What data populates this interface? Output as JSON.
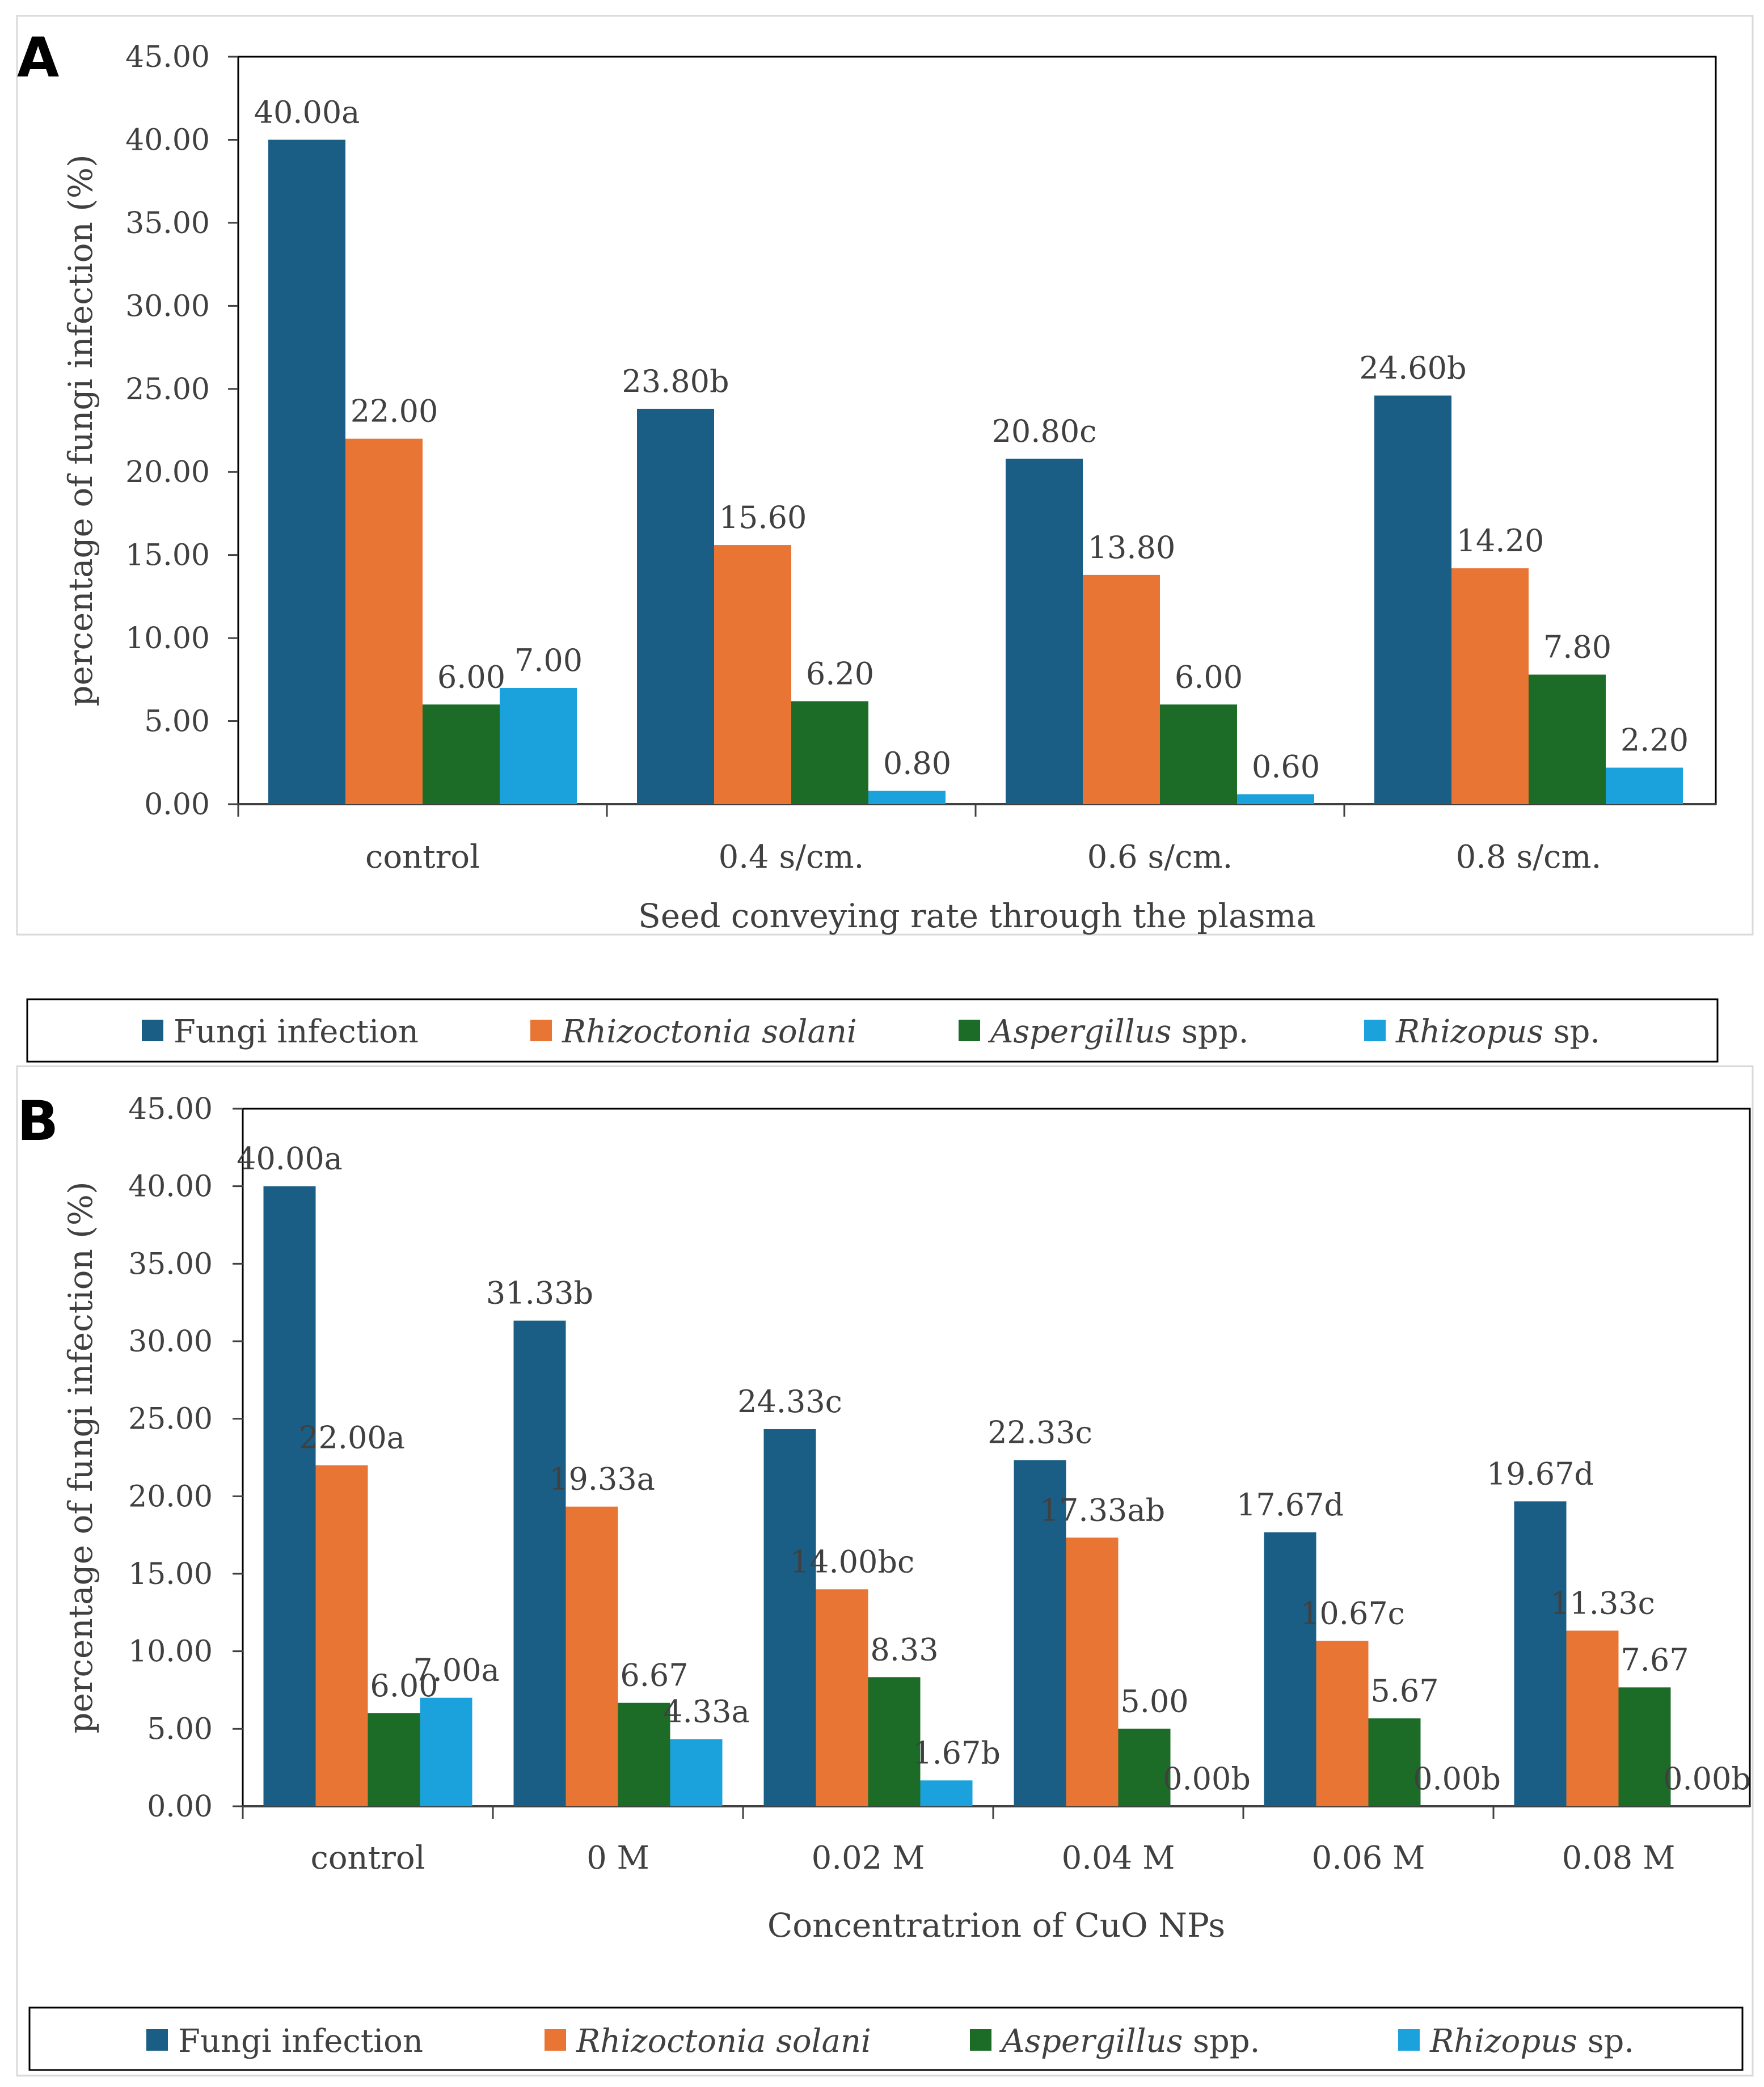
{
  "colors": {
    "fungi": "#1a5e86",
    "rhizoctonia": "#e87534",
    "aspergillus": "#1c6c28",
    "rhizopus": "#1ba2dc",
    "axis": "#404040",
    "frame": "#000000"
  },
  "legend": [
    {
      "key": "fungi",
      "text": "Fungi infection",
      "italic": ""
    },
    {
      "key": "rhizoctonia",
      "text": "",
      "italic": "Rhizoctonia solani"
    },
    {
      "key": "aspergillus",
      "text": " spp.",
      "italic": "Aspergillus"
    },
    {
      "key": "rhizopus",
      "text": " sp.",
      "italic": "Rhizopus"
    }
  ],
  "chart_data": [
    {
      "panel": "A",
      "type": "bar",
      "categories": [
        "control",
        "0.4 s/cm.",
        "0.6 s/cm.",
        "0.8 s/cm."
      ],
      "xlabel": "Seed conveying rate through the plasma",
      "ylabel": "percentage of fungi infection (%)",
      "ylim": [
        0,
        45
      ],
      "yticks": [
        "0.00",
        "5.00",
        "10.00",
        "15.00",
        "20.00",
        "25.00",
        "30.00",
        "35.00",
        "40.00",
        "45.00"
      ],
      "series": [
        {
          "name": "Fungi infection",
          "key": "fungi",
          "values": [
            40.0,
            23.8,
            20.8,
            24.6
          ],
          "labels": [
            "40.00a",
            "23.80b",
            "20.80c",
            "24.60b"
          ]
        },
        {
          "name": "Rhizoctonia solani",
          "key": "rhizoctonia",
          "values": [
            22.0,
            15.6,
            13.8,
            14.2
          ],
          "labels": [
            "22.00",
            "15.60",
            "13.80",
            "14.20"
          ]
        },
        {
          "name": "Aspergillus spp.",
          "key": "aspergillus",
          "values": [
            6.0,
            6.2,
            6.0,
            7.8
          ],
          "labels": [
            "6.00",
            "6.20",
            "6.00",
            "7.80"
          ]
        },
        {
          "name": "Rhizopus sp.",
          "key": "rhizopus",
          "values": [
            7.0,
            0.8,
            0.6,
            2.2
          ],
          "labels": [
            "7.00",
            "0.80",
            "0.60",
            "2.20"
          ]
        }
      ]
    },
    {
      "panel": "B",
      "type": "bar",
      "categories": [
        "control",
        "0 M",
        "0.02 M",
        "0.04 M",
        "0.06 M",
        "0.08 M"
      ],
      "xlabel": "Concentratrion of CuO NPs",
      "ylabel": "percentage of fungi infection (%)",
      "ylim": [
        0,
        45
      ],
      "yticks": [
        "0.00",
        "5.00",
        "10.00",
        "15.00",
        "20.00",
        "25.00",
        "30.00",
        "35.00",
        "40.00",
        "45.00"
      ],
      "series": [
        {
          "name": "Fungi infection",
          "key": "fungi",
          "values": [
            40.0,
            31.33,
            24.33,
            22.33,
            17.67,
            19.67
          ],
          "labels": [
            "40.00a",
            "31.33b",
            "24.33c",
            "22.33c",
            "17.67d",
            "19.67d"
          ]
        },
        {
          "name": "Rhizoctonia solani",
          "key": "rhizoctonia",
          "values": [
            22.0,
            19.33,
            14.0,
            17.33,
            10.67,
            11.33
          ],
          "labels": [
            "22.00a",
            "19.33a",
            "14.00bc",
            "17.33ab",
            "10.67c",
            "11.33c"
          ]
        },
        {
          "name": "Aspergillus spp.",
          "key": "aspergillus",
          "values": [
            6.0,
            6.67,
            8.33,
            5.0,
            5.67,
            7.67
          ],
          "labels": [
            "6.00",
            "6.67",
            "8.33",
            "5.00",
            "5.67",
            "7.67"
          ]
        },
        {
          "name": "Rhizopus sp.",
          "key": "rhizopus",
          "values": [
            7.0,
            4.33,
            1.67,
            0.0,
            0.0,
            0.0
          ],
          "labels": [
            "7.00a",
            "4.33a",
            "1.67b",
            "0.00b",
            "0.00b",
            "0.00b"
          ]
        }
      ]
    }
  ]
}
